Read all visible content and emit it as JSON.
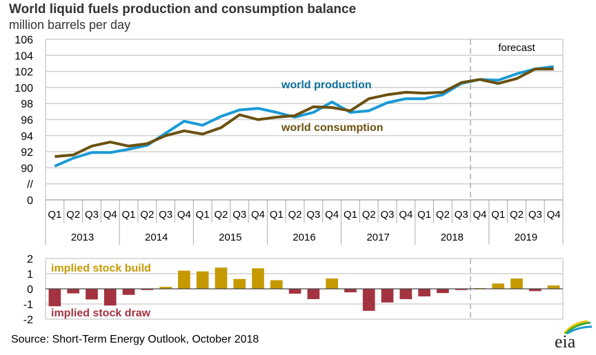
{
  "title": "World liquid fuels production and consumption balance",
  "subtitle": "million barrels per day",
  "source": "Source: Short-Term Energy Outlook, October 2018",
  "logo_text": "eia",
  "colors": {
    "production_line": "#1a9ad6",
    "production_label": "#0e6f9c",
    "consumption": "#6a5110",
    "build": "#c59a00",
    "draw": "#a33340",
    "grid": "#d0d0d0",
    "forecast_line": "#aaaaaa"
  },
  "chart_data": [
    {
      "type": "line",
      "title": "World liquid fuels production and consumption balance",
      "ylabel": "million barrels per day",
      "ylim": [
        90,
        106
      ],
      "yticks": [
        "106",
        "104",
        "102",
        "100",
        "98",
        "96",
        "94",
        "92",
        "90",
        "//",
        "0"
      ],
      "axis_break": "//",
      "grid": true,
      "x_quarters": [
        "Q1",
        "Q2",
        "Q3",
        "Q4",
        "Q1",
        "Q2",
        "Q3",
        "Q4",
        "Q1",
        "Q2",
        "Q3",
        "Q4",
        "Q1",
        "Q2",
        "Q3",
        "Q4",
        "Q1",
        "Q2",
        "Q3",
        "Q4",
        "Q1",
        "Q2",
        "Q3",
        "Q4",
        "Q1",
        "Q2",
        "Q3",
        "Q4"
      ],
      "x_years": [
        "2013",
        "2014",
        "2015",
        "2016",
        "2017",
        "2018",
        "2019"
      ],
      "forecast_label": "forecast",
      "forecast_start_index": 23,
      "series": [
        {
          "name": "world production",
          "values": [
            90.2,
            91.2,
            91.9,
            91.9,
            92.3,
            92.8,
            94.3,
            95.8,
            95.3,
            96.4,
            97.2,
            97.4,
            96.9,
            96.3,
            96.9,
            98.2,
            96.9,
            97.1,
            98.1,
            98.6,
            98.6,
            99.1,
            100.5,
            101.0,
            100.9,
            101.7,
            102.3,
            102.6
          ]
        },
        {
          "name": "world consumption",
          "values": [
            91.4,
            91.6,
            92.7,
            93.2,
            92.7,
            93.0,
            94.0,
            94.6,
            94.2,
            95.0,
            96.6,
            96.0,
            96.3,
            96.5,
            97.6,
            97.5,
            97.1,
            98.6,
            99.1,
            99.4,
            99.3,
            99.4,
            100.6,
            101.0,
            100.5,
            101.1,
            102.3,
            102.3
          ]
        }
      ]
    },
    {
      "type": "bar",
      "ylim": [
        -2,
        2
      ],
      "yticks": [
        "2",
        "1",
        "0",
        "-1",
        "-2"
      ],
      "grid": true,
      "annotations": {
        "positive": "implied stock  build",
        "negative": "implied stock draw"
      },
      "series": [
        {
          "name": "implied stock build/draw",
          "values": [
            -1.15,
            -0.3,
            -0.7,
            -1.1,
            -0.4,
            -0.08,
            0.13,
            1.2,
            1.15,
            1.4,
            0.65,
            1.35,
            0.57,
            -0.32,
            -0.68,
            0.68,
            -0.23,
            -1.45,
            -0.9,
            -0.68,
            -0.5,
            -0.28,
            -0.08,
            0.05,
            0.35,
            0.68,
            -0.15,
            0.22
          ]
        }
      ]
    }
  ]
}
